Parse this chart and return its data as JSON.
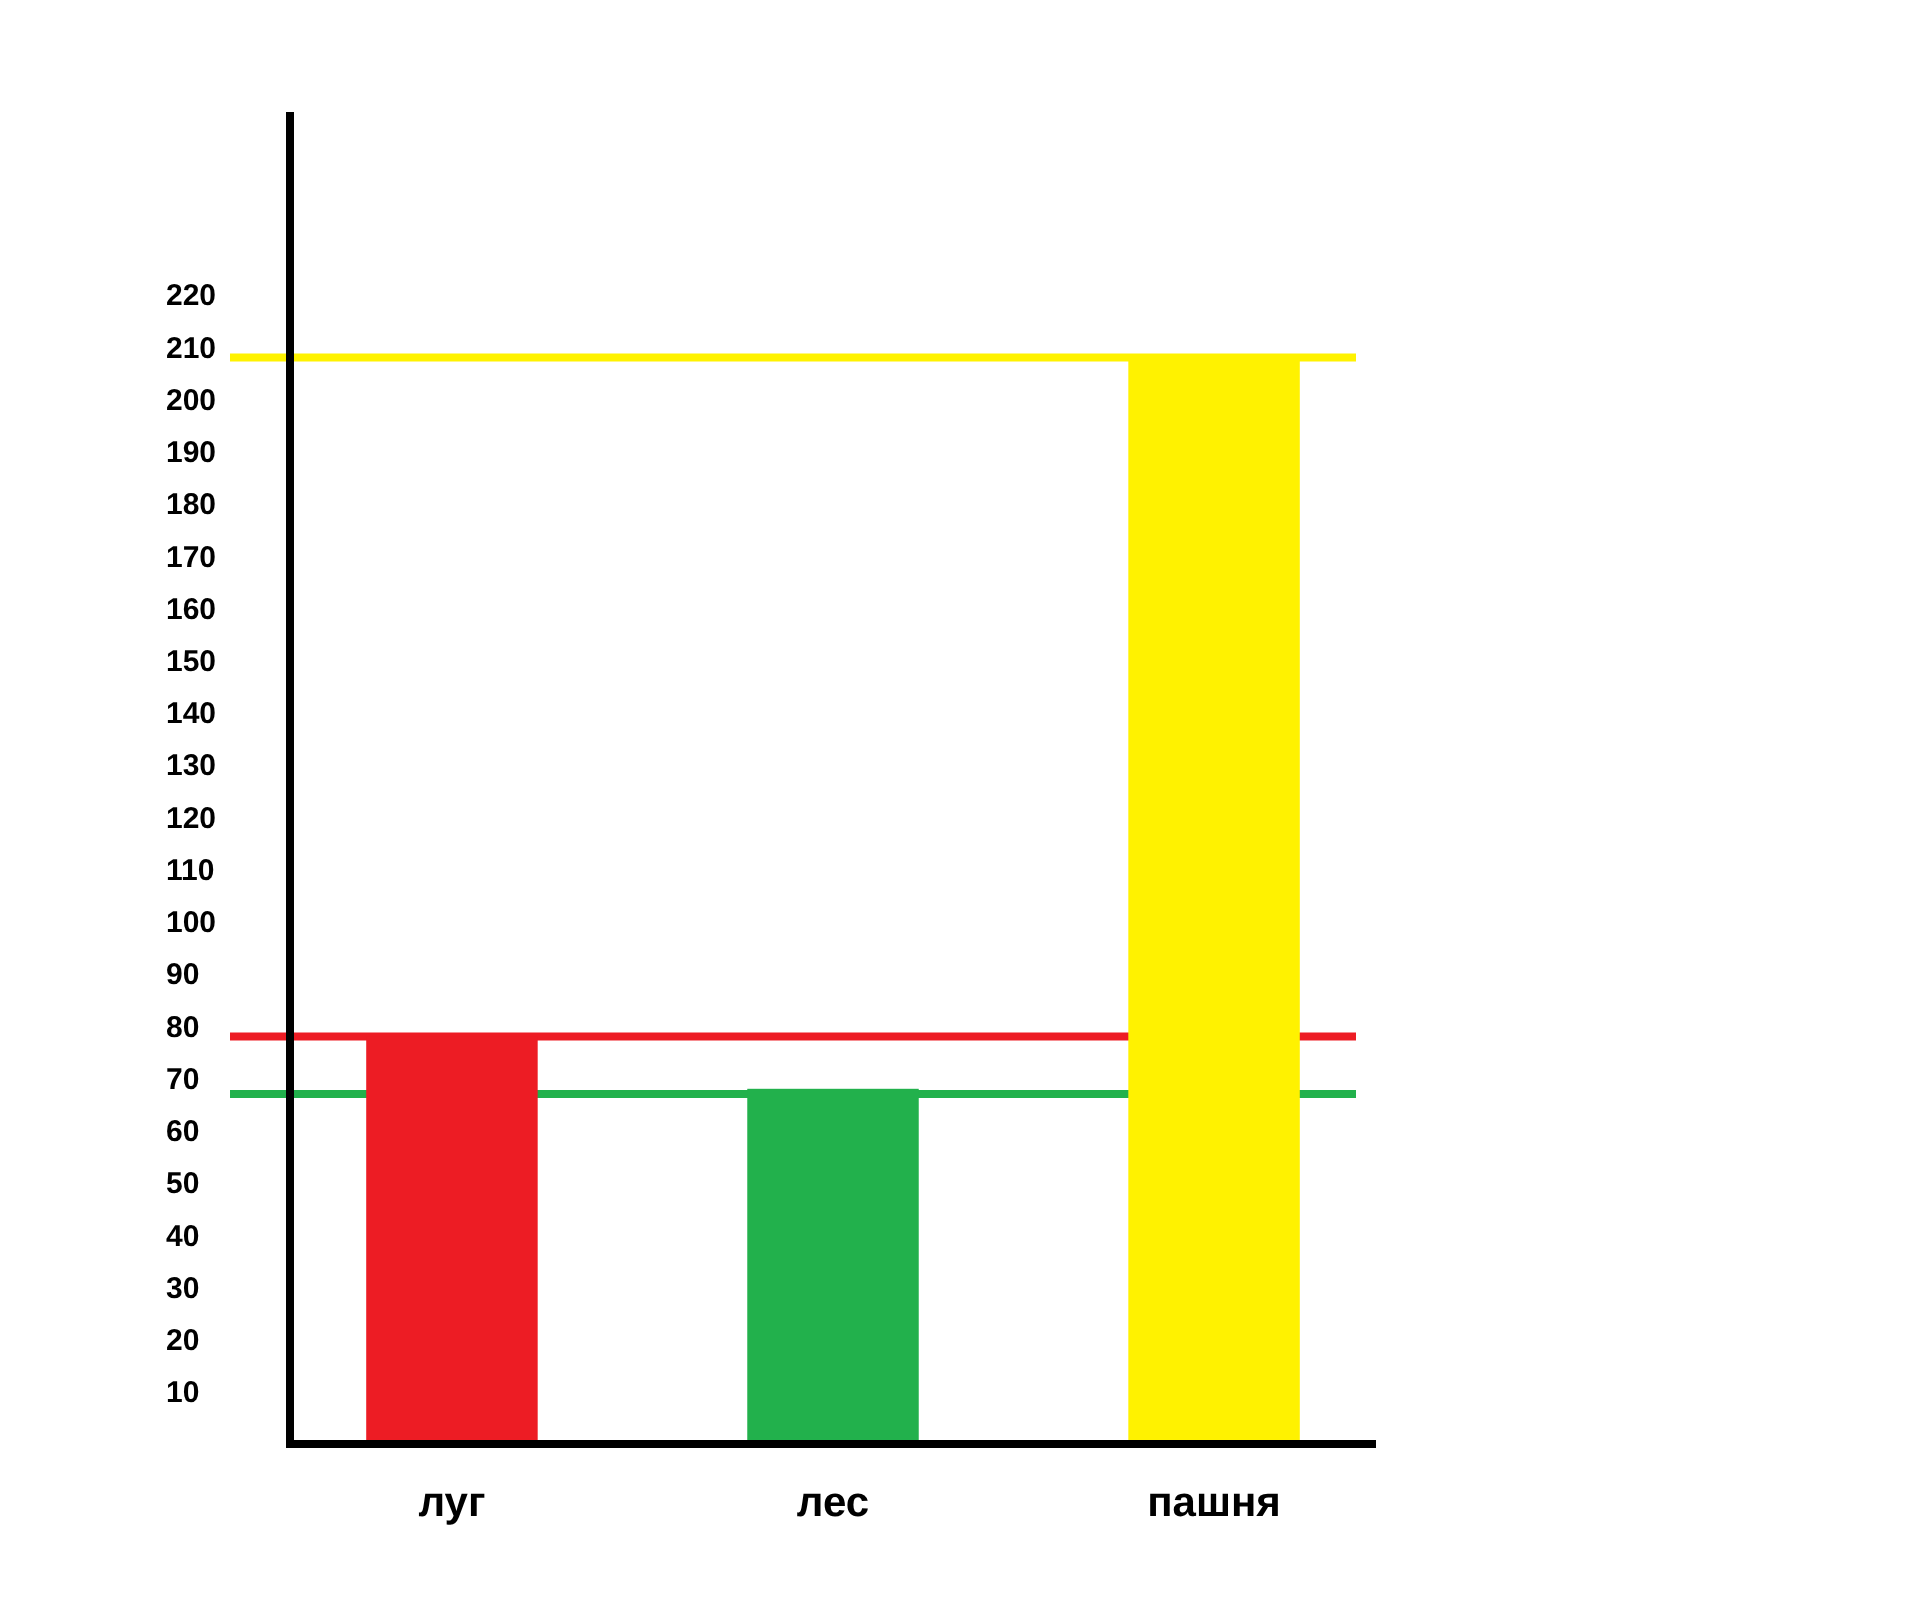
{
  "chart_data": {
    "type": "bar",
    "categories": [
      "луг",
      "лес",
      "пашня"
    ],
    "values": [
      78,
      68,
      208
    ],
    "colors": [
      "#ed1c24",
      "#22b14c",
      "#fff200"
    ],
    "ylim": [
      0,
      255
    ],
    "yticks": [
      10,
      20,
      30,
      40,
      50,
      60,
      70,
      80,
      90,
      100,
      110,
      120,
      130,
      140,
      150,
      160,
      170,
      180,
      190,
      200,
      210,
      220
    ],
    "ref_lines": [
      {
        "axis": "y",
        "value": 78,
        "color": "#ed1c24"
      },
      {
        "axis": "y",
        "value": 67,
        "color": "#22b14c"
      },
      {
        "axis": "y",
        "value": 208,
        "color": "#fff200"
      }
    ]
  }
}
